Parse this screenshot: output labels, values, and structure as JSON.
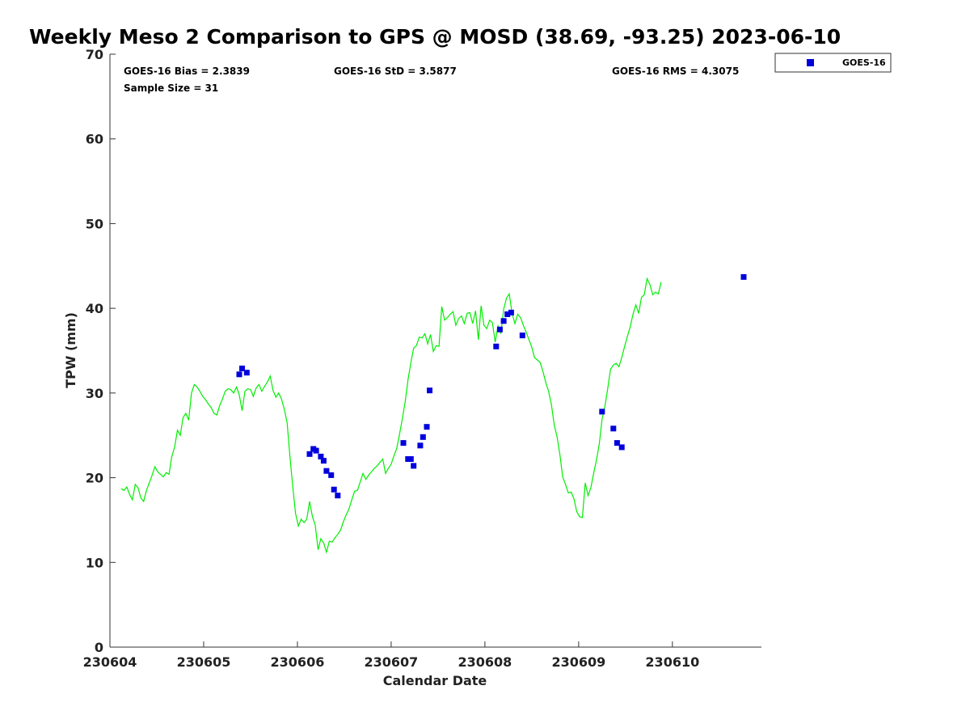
{
  "chart_data": {
    "type": "scatter",
    "title": "Weekly Meso 2 Comparison to GPS @ MOSD (38.69, -93.25) 2023-06-10",
    "xlabel": "Calendar Date",
    "ylabel": "TPW (mm)",
    "xlim": [
      230604,
      230610.95
    ],
    "ylim": [
      0,
      70
    ],
    "x_tick_labels": [
      "230604",
      "230605",
      "230606",
      "230607",
      "230608",
      "230609",
      "230610"
    ],
    "y_tick_labels": [
      "0",
      "10",
      "20",
      "30",
      "40",
      "50",
      "60",
      "70"
    ],
    "grid": false,
    "legend_position": "top-right",
    "stats": {
      "bias": "GOES-16 Bias = 2.3839",
      "std": "GOES-16 StD = 3.5877",
      "rms": "GOES-16 RMS = 4.3075",
      "sample": "Sample Size = 31"
    },
    "series": [
      {
        "name": "GOES-16",
        "type": "scatter",
        "color": "#0000dd",
        "points": [
          [
            230605.38,
            32.2
          ],
          [
            230605.41,
            32.9
          ],
          [
            230605.46,
            32.4
          ],
          [
            230606.13,
            22.8
          ],
          [
            230606.17,
            23.4
          ],
          [
            230606.2,
            23.2
          ],
          [
            230606.25,
            22.5
          ],
          [
            230606.28,
            22.0
          ],
          [
            230606.31,
            20.8
          ],
          [
            230606.36,
            20.3
          ],
          [
            230606.39,
            18.6
          ],
          [
            230606.43,
            17.9
          ],
          [
            230607.13,
            24.1
          ],
          [
            230607.18,
            22.2
          ],
          [
            230607.21,
            22.2
          ],
          [
            230607.24,
            21.4
          ],
          [
            230607.31,
            23.8
          ],
          [
            230607.34,
            24.8
          ],
          [
            230607.38,
            26.0
          ],
          [
            230607.41,
            30.3
          ],
          [
            230608.12,
            35.5
          ],
          [
            230608.16,
            37.5
          ],
          [
            230608.2,
            38.5
          ],
          [
            230608.24,
            39.3
          ],
          [
            230608.28,
            39.5
          ],
          [
            230608.4,
            36.8
          ],
          [
            230609.25,
            27.8
          ],
          [
            230609.37,
            25.8
          ],
          [
            230609.41,
            24.1
          ],
          [
            230609.46,
            23.6
          ],
          [
            230610.76,
            43.7
          ]
        ]
      },
      {
        "name": "",
        "type": "line",
        "color": "#00ee00",
        "points": [
          [
            230604.12,
            18.7
          ],
          [
            230604.15,
            18.5
          ],
          [
            230604.18,
            18.9
          ],
          [
            230604.21,
            18.0
          ],
          [
            230604.24,
            17.4
          ],
          [
            230604.27,
            19.2
          ],
          [
            230604.3,
            18.8
          ],
          [
            230604.33,
            17.6
          ],
          [
            230604.36,
            17.2
          ],
          [
            230604.39,
            18.5
          ],
          [
            230604.42,
            19.4
          ],
          [
            230604.45,
            20.3
          ],
          [
            230604.48,
            21.3
          ],
          [
            230604.51,
            20.7
          ],
          [
            230604.54,
            20.4
          ],
          [
            230604.57,
            20.1
          ],
          [
            230604.6,
            20.6
          ],
          [
            230604.63,
            20.4
          ],
          [
            230604.66,
            22.5
          ],
          [
            230604.69,
            23.6
          ],
          [
            230604.72,
            25.6
          ],
          [
            230604.75,
            25.0
          ],
          [
            230604.78,
            27.1
          ],
          [
            230604.81,
            27.6
          ],
          [
            230604.84,
            26.8
          ],
          [
            230604.87,
            30.0
          ],
          [
            230604.9,
            31.0
          ],
          [
            230604.93,
            30.7
          ],
          [
            230604.96,
            30.2
          ],
          [
            230604.99,
            29.6
          ],
          [
            230605.02,
            29.2
          ],
          [
            230605.05,
            28.7
          ],
          [
            230605.08,
            28.3
          ],
          [
            230605.11,
            27.6
          ],
          [
            230605.14,
            27.4
          ],
          [
            230605.17,
            28.5
          ],
          [
            230605.2,
            29.3
          ],
          [
            230605.23,
            30.2
          ],
          [
            230605.26,
            30.5
          ],
          [
            230605.29,
            30.4
          ],
          [
            230605.32,
            30.0
          ],
          [
            230605.35,
            30.7
          ],
          [
            230605.38,
            29.8
          ],
          [
            230605.41,
            27.9
          ],
          [
            230605.44,
            30.2
          ],
          [
            230605.47,
            30.5
          ],
          [
            230605.5,
            30.4
          ],
          [
            230605.53,
            29.6
          ],
          [
            230605.56,
            30.6
          ],
          [
            230605.59,
            31.0
          ],
          [
            230605.62,
            30.2
          ],
          [
            230605.65,
            30.8
          ],
          [
            230605.68,
            31.3
          ],
          [
            230605.71,
            32.0
          ],
          [
            230605.74,
            30.3
          ],
          [
            230605.77,
            29.5
          ],
          [
            230605.8,
            30.0
          ],
          [
            230605.83,
            29.3
          ],
          [
            230605.86,
            28.1
          ],
          [
            230605.89,
            26.5
          ],
          [
            230605.92,
            22.5
          ],
          [
            230605.95,
            19.0
          ],
          [
            230605.98,
            15.8
          ],
          [
            230606.01,
            14.3
          ],
          [
            230606.04,
            15.1
          ],
          [
            230606.07,
            14.7
          ],
          [
            230606.1,
            15.1
          ],
          [
            230606.13,
            17.2
          ],
          [
            230606.16,
            15.4
          ],
          [
            230606.19,
            14.4
          ],
          [
            230606.22,
            11.5
          ],
          [
            230606.25,
            12.8
          ],
          [
            230606.28,
            12.3
          ],
          [
            230606.31,
            11.2
          ],
          [
            230606.34,
            12.5
          ],
          [
            230606.37,
            12.4
          ],
          [
            230606.4,
            12.9
          ],
          [
            230606.43,
            13.3
          ],
          [
            230606.46,
            13.8
          ],
          [
            230606.49,
            14.8
          ],
          [
            230606.52,
            15.6
          ],
          [
            230606.55,
            16.3
          ],
          [
            230606.58,
            17.4
          ],
          [
            230606.61,
            18.4
          ],
          [
            230606.64,
            18.5
          ],
          [
            230606.67,
            19.5
          ],
          [
            230606.7,
            20.5
          ],
          [
            230606.73,
            19.8
          ],
          [
            230606.76,
            20.3
          ],
          [
            230606.79,
            20.7
          ],
          [
            230606.82,
            21.1
          ],
          [
            230606.85,
            21.4
          ],
          [
            230606.88,
            21.8
          ],
          [
            230606.91,
            22.2
          ],
          [
            230606.94,
            20.5
          ],
          [
            230606.97,
            21.1
          ],
          [
            230607.0,
            21.6
          ],
          [
            230607.03,
            22.6
          ],
          [
            230607.06,
            23.5
          ],
          [
            230607.09,
            25.2
          ],
          [
            230607.12,
            27.0
          ],
          [
            230607.15,
            29.0
          ],
          [
            230607.18,
            31.6
          ],
          [
            230607.21,
            33.6
          ],
          [
            230607.24,
            35.3
          ],
          [
            230607.27,
            35.6
          ],
          [
            230607.3,
            36.6
          ],
          [
            230607.33,
            36.5
          ],
          [
            230607.36,
            37.0
          ],
          [
            230607.39,
            35.8
          ],
          [
            230607.42,
            36.9
          ],
          [
            230607.45,
            34.9
          ],
          [
            230607.48,
            35.6
          ],
          [
            230607.51,
            35.5
          ],
          [
            230607.54,
            40.2
          ],
          [
            230607.57,
            38.6
          ],
          [
            230607.6,
            38.9
          ],
          [
            230607.63,
            39.3
          ],
          [
            230607.66,
            39.6
          ],
          [
            230607.69,
            38.0
          ],
          [
            230607.72,
            38.8
          ],
          [
            230607.75,
            39.1
          ],
          [
            230607.78,
            38.2
          ],
          [
            230607.81,
            39.4
          ],
          [
            230607.84,
            39.5
          ],
          [
            230607.87,
            38.2
          ],
          [
            230607.9,
            39.7
          ],
          [
            230607.93,
            36.3
          ],
          [
            230607.96,
            40.3
          ],
          [
            230607.99,
            38.0
          ],
          [
            230608.02,
            37.6
          ],
          [
            230608.05,
            38.6
          ],
          [
            230608.08,
            38.3
          ],
          [
            230608.11,
            36.0
          ],
          [
            230608.14,
            37.9
          ],
          [
            230608.17,
            37.0
          ],
          [
            230608.2,
            39.9
          ],
          [
            230608.23,
            41.2
          ],
          [
            230608.26,
            41.7
          ],
          [
            230608.29,
            39.4
          ],
          [
            230608.32,
            38.2
          ],
          [
            230608.35,
            39.3
          ],
          [
            230608.38,
            38.9
          ],
          [
            230608.41,
            38.0
          ],
          [
            230608.44,
            37.2
          ],
          [
            230608.47,
            36.3
          ],
          [
            230608.5,
            35.4
          ],
          [
            230608.53,
            34.2
          ],
          [
            230608.56,
            33.9
          ],
          [
            230608.59,
            33.6
          ],
          [
            230608.62,
            32.5
          ],
          [
            230608.65,
            31.2
          ],
          [
            230608.68,
            30.2
          ],
          [
            230608.71,
            28.6
          ],
          [
            230608.74,
            26.2
          ],
          [
            230608.77,
            24.8
          ],
          [
            230608.8,
            22.7
          ],
          [
            230608.83,
            20.1
          ],
          [
            230608.86,
            19.2
          ],
          [
            230608.89,
            18.2
          ],
          [
            230608.92,
            18.3
          ],
          [
            230608.95,
            17.5
          ],
          [
            230608.98,
            16.0
          ],
          [
            230609.01,
            15.4
          ],
          [
            230609.04,
            15.3
          ],
          [
            230609.07,
            19.4
          ],
          [
            230609.1,
            17.9
          ],
          [
            230609.13,
            18.8
          ],
          [
            230609.16,
            20.5
          ],
          [
            230609.19,
            22.1
          ],
          [
            230609.22,
            24.0
          ],
          [
            230609.25,
            26.9
          ],
          [
            230609.28,
            28.4
          ],
          [
            230609.31,
            30.5
          ],
          [
            230609.34,
            32.8
          ],
          [
            230609.37,
            33.3
          ],
          [
            230609.4,
            33.5
          ],
          [
            230609.43,
            33.1
          ],
          [
            230609.46,
            34.2
          ],
          [
            230609.49,
            35.5
          ],
          [
            230609.52,
            36.7
          ],
          [
            230609.55,
            37.8
          ],
          [
            230609.58,
            39.3
          ],
          [
            230609.61,
            40.4
          ],
          [
            230609.64,
            39.4
          ],
          [
            230609.67,
            41.3
          ],
          [
            230609.7,
            41.6
          ],
          [
            230609.73,
            43.5
          ],
          [
            230609.76,
            42.8
          ],
          [
            230609.79,
            41.6
          ],
          [
            230609.82,
            41.9
          ],
          [
            230609.85,
            41.7
          ],
          [
            230609.88,
            43.1
          ]
        ]
      }
    ]
  }
}
